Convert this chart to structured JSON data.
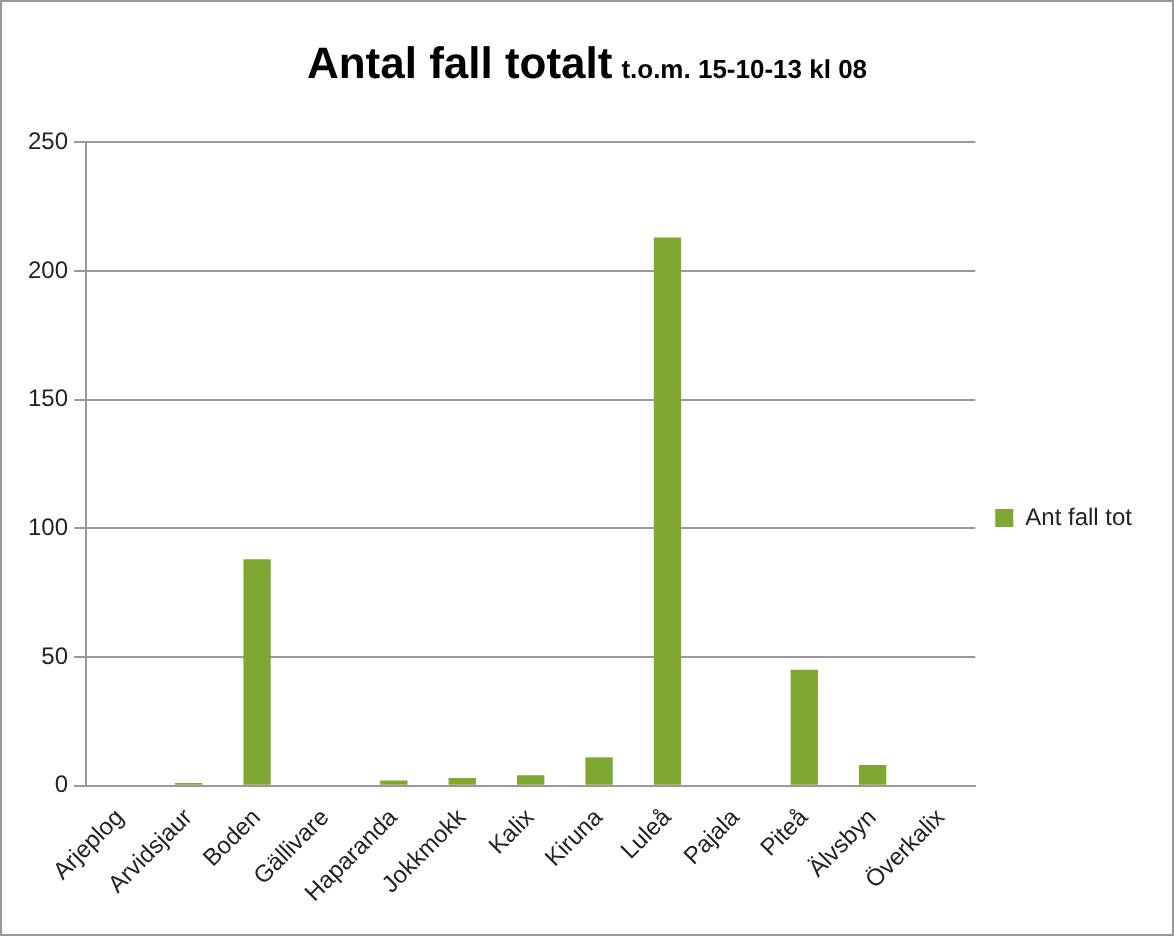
{
  "chart_data": {
    "type": "bar",
    "title": "Antal fall totalt",
    "subtitle": "t.o.m. 15-10-13 kl 08",
    "categories": [
      "Arjeplog",
      "Arvidsjaur",
      "Boden",
      "Gällivare",
      "Haparanda",
      "Jokkmokk",
      "Kalix",
      "Kiruna",
      "Luleå",
      "Pajala",
      "Piteå",
      "Älvsbyn",
      "Överkalix"
    ],
    "series": [
      {
        "name": "Ant fall tot",
        "color": "#7fa832",
        "values": [
          0,
          1,
          88,
          0,
          2,
          3,
          4,
          11,
          213,
          0,
          45,
          8,
          0
        ]
      }
    ],
    "ylim": [
      0,
      250
    ],
    "yticks": [
      0,
      50,
      100,
      150,
      200,
      250
    ],
    "grid": "y",
    "legend": "right"
  }
}
